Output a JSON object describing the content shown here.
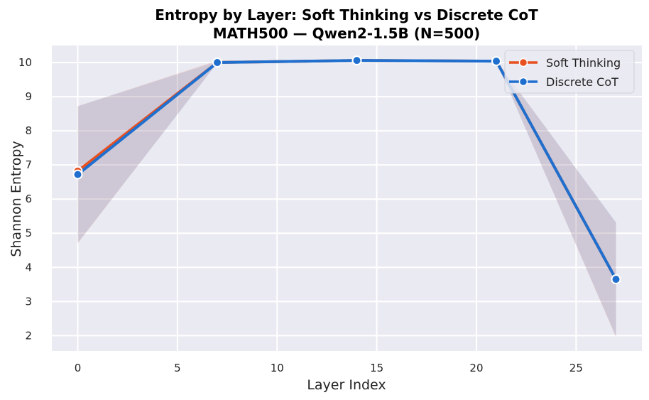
{
  "chart_data": {
    "type": "line",
    "title": "Entropy by Layer: Soft Thinking vs Discrete CoT",
    "subtitle": "MATH500 — Qwen2-1.5B (N=500)",
    "xlabel": "Layer Index",
    "ylabel": "Shannon Entropy",
    "xlim": [
      -1.3,
      28.3
    ],
    "ylim": [
      1.55,
      10.5
    ],
    "xticks": [
      0,
      5,
      10,
      15,
      20,
      25
    ],
    "yticks": [
      2,
      3,
      4,
      5,
      6,
      7,
      8,
      9,
      10
    ],
    "grid": true,
    "legend_position": "top-right",
    "x": [
      0,
      7,
      14,
      21,
      27
    ],
    "series": [
      {
        "name": "Soft Thinking",
        "color": "#e8501f",
        "values": [
          6.82,
          10.0,
          10.06,
          10.04,
          3.65
        ],
        "band_lower": [
          4.7,
          10.0,
          10.06,
          10.04,
          1.95
        ],
        "band_upper": [
          8.72,
          10.06,
          10.08,
          10.06,
          5.3
        ]
      },
      {
        "name": "Discrete CoT",
        "color": "#1f6fcf",
        "values": [
          6.72,
          10.0,
          10.06,
          10.04,
          3.65
        ],
        "band_lower": [
          4.72,
          9.98,
          10.05,
          10.03,
          1.98
        ],
        "band_upper": [
          8.72,
          10.03,
          10.07,
          10.05,
          5.32
        ]
      }
    ]
  }
}
